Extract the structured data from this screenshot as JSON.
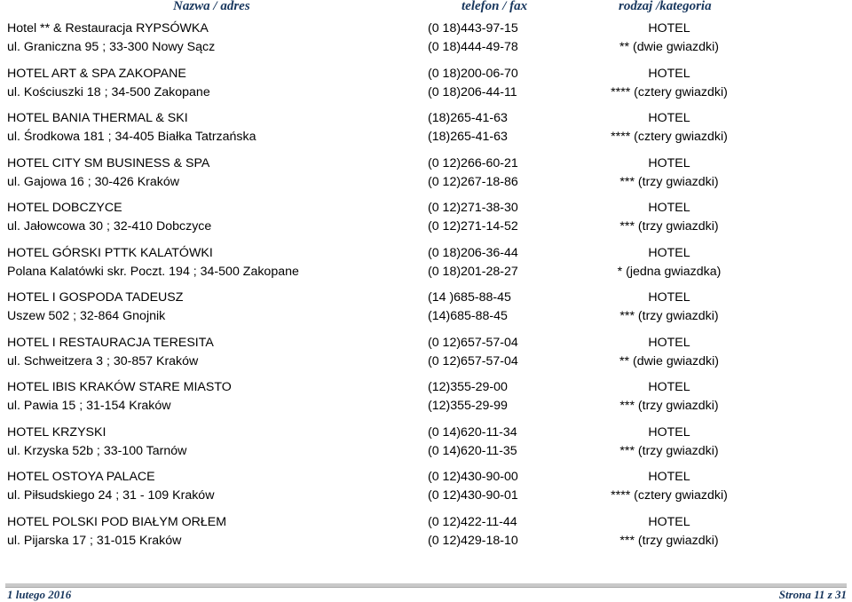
{
  "header": {
    "name": "Nazwa / adres",
    "phone": "telefon / fax",
    "category": "rodzaj /kategoria"
  },
  "entries": [
    {
      "name": "Hotel ** & Restauracja RYPSÓWKA",
      "address": "ul. Graniczna 95 ; 33-300 Nowy Sącz",
      "phone1": "(0 18)443-97-15",
      "phone2": "(0 18)444-49-78",
      "type": "HOTEL",
      "stars": "** (dwie gwiazdki)"
    },
    {
      "name": "HOTEL ART & SPA ZAKOPANE",
      "address": "ul. Kościuszki 18 ; 34-500 Zakopane",
      "phone1": "(0 18)200-06-70",
      "phone2": "(0 18)206-44-11",
      "type": "HOTEL",
      "stars": "**** (cztery gwiazdki)"
    },
    {
      "name": "HOTEL BANIA THERMAL & SKI",
      "address": "ul. Środkowa 181 ; 34-405 Białka Tatrzańska",
      "phone1": "(18)265-41-63",
      "phone2": "(18)265-41-63",
      "type": "HOTEL",
      "stars": "**** (cztery gwiazdki)"
    },
    {
      "name": "HOTEL CITY SM BUSINESS & SPA",
      "address": "ul. Gajowa 16 ; 30-426 Kraków",
      "phone1": "(0 12)266-60-21",
      "phone2": "(0 12)267-18-86",
      "type": "HOTEL",
      "stars": "*** (trzy gwiazdki)"
    },
    {
      "name": "HOTEL DOBCZYCE",
      "address": "ul. Jałowcowa 30 ; 32-410 Dobczyce",
      "phone1": "(0 12)271-38-30",
      "phone2": "(0 12)271-14-52",
      "type": "HOTEL",
      "stars": "*** (trzy gwiazdki)"
    },
    {
      "name": "HOTEL GÓRSKI PTTK KALATÓWKI",
      "address": "Polana Kalatówki skr. Poczt. 194 ; 34-500 Zakopane",
      "phone1": "(0 18)206-36-44",
      "phone2": "(0 18)201-28-27",
      "type": "HOTEL",
      "stars": "* (jedna gwiazdka)"
    },
    {
      "name": "HOTEL I GOSPODA TADEUSZ",
      "address": "Uszew 502 ; 32-864 Gnojnik",
      "phone1": "(14 )685-88-45",
      "phone2": "(14)685-88-45",
      "type": "HOTEL",
      "stars": "*** (trzy gwiazdki)"
    },
    {
      "name": "HOTEL I RESTAURACJA TERESITA",
      "address": "ul. Schweitzera 3 ; 30-857 Kraków",
      "phone1": "(0 12)657-57-04",
      "phone2": "(0 12)657-57-04",
      "type": "HOTEL",
      "stars": "** (dwie gwiazdki)"
    },
    {
      "name": "HOTEL IBIS KRAKÓW STARE MIASTO",
      "address": "ul. Pawia 15 ; 31-154 Kraków",
      "phone1": "(12)355-29-00",
      "phone2": "(12)355-29-99",
      "type": "HOTEL",
      "stars": "*** (trzy gwiazdki)"
    },
    {
      "name": "HOTEL KRZYSKI",
      "address": "ul. Krzyska 52b ; 33-100 Tarnów",
      "phone1": "(0 14)620-11-34",
      "phone2": "(0 14)620-11-35",
      "type": "HOTEL",
      "stars": "*** (trzy gwiazdki)"
    },
    {
      "name": "HOTEL OSTOYA PALACE",
      "address": "ul. Piłsudskiego 24 ; 31 - 109 Kraków",
      "phone1": "(0 12)430-90-00",
      "phone2": "(0 12)430-90-01",
      "type": "HOTEL",
      "stars": "**** (cztery gwiazdki)"
    },
    {
      "name": "HOTEL POLSKI POD BIAŁYM ORŁEM",
      "address": "ul. Pijarska 17 ; 31-015 Kraków",
      "phone1": "(0 12)422-11-44",
      "phone2": "(0 12)429-18-10",
      "type": "HOTEL",
      "stars": "*** (trzy gwiazdki)"
    }
  ],
  "footer": {
    "date": "1 lutego 2016",
    "page": "Strona 11 z 31"
  }
}
